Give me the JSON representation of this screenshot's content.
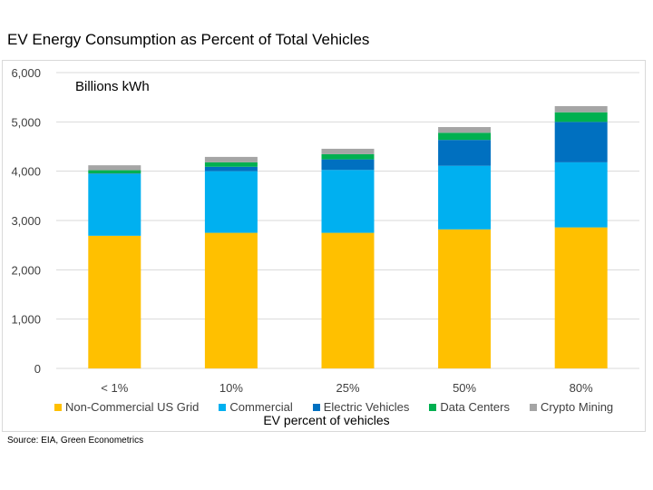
{
  "chart_data": {
    "type": "bar",
    "stacked": true,
    "title": "EV Energy Consumption as Percent of Total Vehicles",
    "unit_label": "Billions kWh",
    "xlabel": "EV percent of vehicles",
    "ylabel": "",
    "ylim": [
      0,
      6000
    ],
    "yticks": [
      "0",
      "1,000",
      "2,000",
      "3,000",
      "4,000",
      "5,000",
      "6,000"
    ],
    "ytick_values": [
      0,
      1000,
      2000,
      3000,
      4000,
      5000,
      6000
    ],
    "grid": true,
    "legend_position": "bottom",
    "categories": [
      "< 1%",
      "10%",
      "25%",
      "50%",
      "80%"
    ],
    "series": [
      {
        "name": "Non-Commercial US Grid",
        "color": "#FFC000",
        "values": [
          2690,
          2750,
          2750,
          2820,
          2860
        ]
      },
      {
        "name": "Commercial",
        "color": "#00B0F0",
        "values": [
          1255,
          1250,
          1275,
          1290,
          1320
        ]
      },
      {
        "name": "Electric Vehicles",
        "color": "#0070C0",
        "values": [
          10,
          90,
          215,
          525,
          820
        ]
      },
      {
        "name": "Data Centers",
        "color": "#00B050",
        "values": [
          65,
          90,
          105,
          145,
          195
        ]
      },
      {
        "name": "Crypto Mining",
        "color": "#A5A5A5",
        "values": [
          100,
          110,
          110,
          115,
          125
        ]
      }
    ]
  },
  "source": "Source: EIA, Green Econometrics"
}
